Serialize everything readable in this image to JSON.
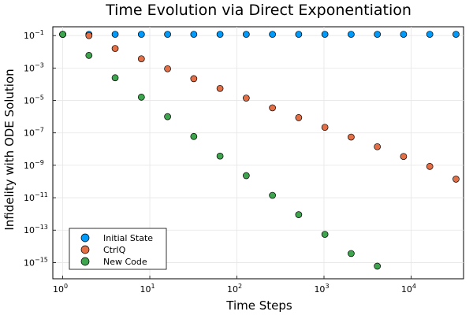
{
  "chart_data": {
    "type": "scatter",
    "title": "Time Evolution via Direct Exponentiation",
    "xlabel": "Time Steps",
    "ylabel": "Infidelity with ODE Solution",
    "xscale": "log",
    "yscale": "log",
    "xlim": [
      0.77,
      40000
    ],
    "ylim": [
      1e-16,
      0.35
    ],
    "x_ticks": [
      {
        "base": "10",
        "exp": "0",
        "value": 1
      },
      {
        "base": "10",
        "exp": "1",
        "value": 10
      },
      {
        "base": "10",
        "exp": "2",
        "value": 100
      },
      {
        "base": "10",
        "exp": "3",
        "value": 1000
      },
      {
        "base": "10",
        "exp": "4",
        "value": 10000
      }
    ],
    "y_ticks": [
      {
        "base": "10",
        "exp": "−1",
        "value": 0.1
      },
      {
        "base": "10",
        "exp": "−3",
        "value": 0.001
      },
      {
        "base": "10",
        "exp": "−5",
        "value": 1e-05
      },
      {
        "base": "10",
        "exp": "−7",
        "value": 1e-07
      },
      {
        "base": "10",
        "exp": "−9",
        "value": 1e-09
      },
      {
        "base": "10",
        "exp": "−11",
        "value": 1e-11
      },
      {
        "base": "10",
        "exp": "−13",
        "value": 1e-13
      },
      {
        "base": "10",
        "exp": "−15",
        "value": 1e-15
      }
    ],
    "grid": true,
    "legend_position": "bottom-left",
    "series": [
      {
        "name": "Initial State",
        "color": "#009AFA",
        "x": [
          1,
          2,
          4,
          8,
          16,
          32,
          64,
          128,
          256,
          512,
          1024,
          2048,
          4096,
          8192,
          16384,
          32768
        ],
        "y": [
          0.12,
          0.12,
          0.12,
          0.12,
          0.12,
          0.12,
          0.12,
          0.12,
          0.12,
          0.12,
          0.12,
          0.12,
          0.12,
          0.12,
          0.12,
          0.12
        ]
      },
      {
        "name": "CtrlQ",
        "color": "#E36F47",
        "x": [
          1,
          2,
          4,
          8,
          16,
          32,
          64,
          128,
          256,
          512,
          1024,
          2048,
          4096,
          8192,
          16384,
          32768
        ],
        "y": [
          0.12,
          0.1,
          0.016,
          0.0037,
          0.0009,
          0.00022,
          5.5e-05,
          1.4e-05,
          3.5e-06,
          8.7e-07,
          2.2e-07,
          5.5e-08,
          1.4e-08,
          3.5e-09,
          8.5e-10,
          1.4e-10
        ]
      },
      {
        "name": "New Code",
        "color": "#3EA44E",
        "x": [
          1,
          2,
          4,
          8,
          16,
          32,
          64,
          128,
          256,
          512,
          1024,
          2048,
          4096
        ],
        "y": [
          0.12,
          0.006,
          0.00025,
          1.6e-05,
          1e-06,
          6e-08,
          3.7e-09,
          2.3e-10,
          1.4e-11,
          9e-13,
          5.5e-14,
          3.6e-15,
          6e-16
        ]
      }
    ]
  }
}
